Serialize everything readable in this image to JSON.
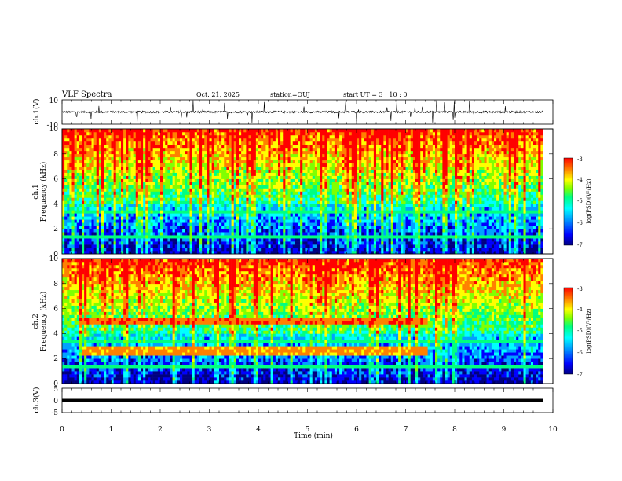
{
  "header": {
    "title": "VLF Spectra",
    "date": "Oct. 21, 2025",
    "station": "station=OUJ",
    "start": "start  UT =   3 : 10 : 0"
  },
  "chart_data": [
    {
      "type": "line",
      "panel": "ch1-waveform",
      "ylabel": "ch.1(V)",
      "ylim": [
        -10,
        10
      ],
      "yticks": [
        "10",
        "-10"
      ],
      "xlim": [
        0,
        10
      ],
      "description_values": {
        "baseline": 0,
        "typical_amplitude": 1.5,
        "spike_amplitude": 8
      }
    },
    {
      "type": "heatmap",
      "panel": "ch1-spectrogram",
      "ylabel": "ch.1\nFrequency (kHz)",
      "ylabel_lines": [
        "ch.1",
        "Frequency (kHz)"
      ],
      "ylim": [
        0,
        10
      ],
      "yticks": [
        "0",
        "2",
        "4",
        "6",
        "8",
        "10"
      ],
      "xlim": [
        0,
        9.8
      ],
      "colorbar": {
        "label": "log(PSD)(V²/Hz)",
        "range": [
          -7,
          -3
        ],
        "ticks": [
          "-3",
          "-4",
          "-5",
          "-6",
          "-7"
        ]
      },
      "features": [
        {
          "name": "background noise floor",
          "freq_khz": [
            0,
            2
          ],
          "log_psd": -6.5
        },
        {
          "name": "broadband impulsive emissions",
          "freq_khz": [
            4,
            10
          ],
          "log_psd": -3.6
        }
      ]
    },
    {
      "type": "heatmap",
      "panel": "ch2-spectrogram",
      "ylabel": "ch.2\nFrequency (kHz)",
      "ylabel_lines": [
        "ch.2",
        "Frequency (kHz)"
      ],
      "ylim": [
        0,
        10
      ],
      "yticks": [
        "0",
        "2",
        "4",
        "6",
        "8",
        "10"
      ],
      "xlim": [
        0,
        9.8
      ],
      "colorbar": {
        "label": "log(PSD)(V²/Hz)",
        "range": [
          -7,
          -3
        ],
        "ticks": [
          "-3",
          "-4",
          "-5",
          "-6",
          "-7"
        ]
      },
      "features": [
        {
          "name": "narrowband line",
          "time_min": [
            0.4,
            7.4
          ],
          "freq_khz": 5.0,
          "log_psd": -3.5
        },
        {
          "name": "narrowband line",
          "time_min": [
            0.4,
            7.4
          ],
          "freq_khz": 2.6,
          "log_psd": -3.8
        }
      ]
    },
    {
      "type": "line",
      "panel": "ch3-waveform",
      "ylabel": "ch.3(V)",
      "ylim": [
        -5,
        5
      ],
      "yticks": [
        "5",
        "0",
        "-5"
      ],
      "xlim": [
        0,
        10
      ],
      "x": [
        0,
        9.8
      ],
      "y": [
        0,
        0
      ]
    }
  ],
  "xaxis": {
    "label": "Time  (min)",
    "ticks": [
      "0",
      "1",
      "2",
      "3",
      "4",
      "5",
      "6",
      "7",
      "8",
      "9",
      "10"
    ]
  },
  "colors": {
    "colormap": [
      "#000080",
      "#0000ff",
      "#00a0ff",
      "#00ffff",
      "#00ff80",
      "#80ff00",
      "#ffff00",
      "#ff8000",
      "#ff0000"
    ]
  }
}
